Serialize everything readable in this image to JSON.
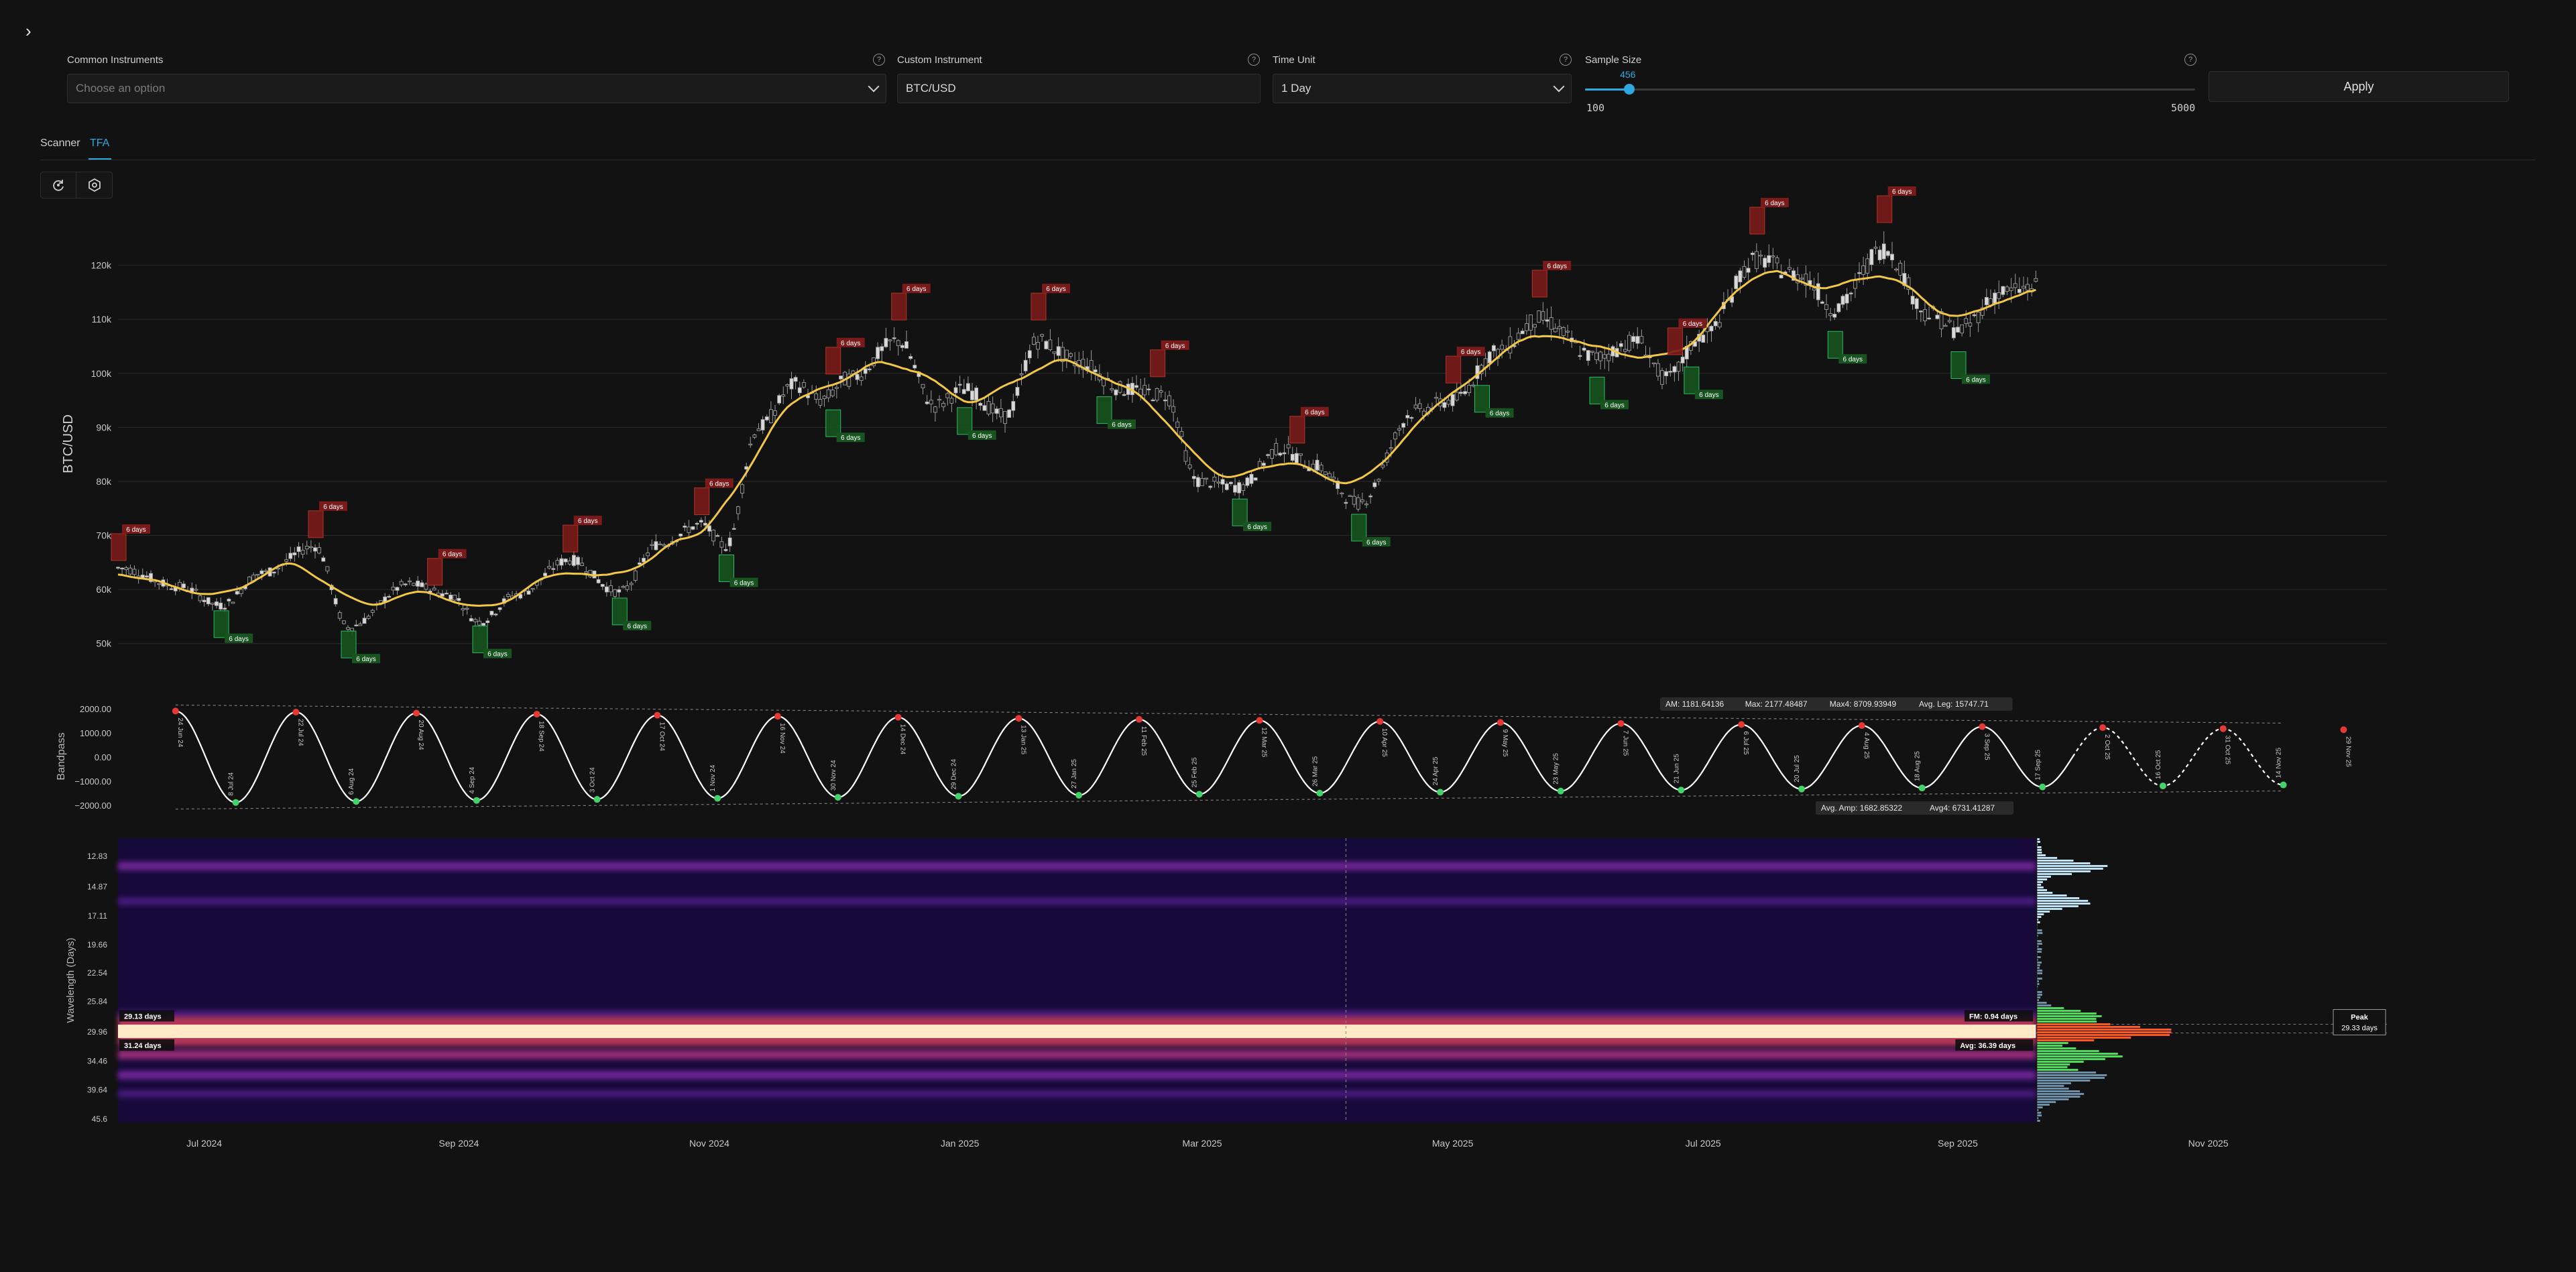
{
  "controls": {
    "common_instruments": {
      "label": "Common Instruments",
      "placeholder": "Choose an option"
    },
    "custom_instrument": {
      "label": "Custom Instrument",
      "value": "BTC/USD"
    },
    "time_unit": {
      "label": "Time Unit",
      "value": "1 Day"
    },
    "sample_size": {
      "label": "Sample Size",
      "value": 456,
      "min": 100,
      "max": 5000,
      "value_text": "456",
      "min_text": "100",
      "max_text": "5000"
    },
    "apply_label": "Apply",
    "help_glyph": "?"
  },
  "tabs": [
    {
      "label": "Scanner",
      "active": false
    },
    {
      "label": "TFA",
      "active": true
    }
  ],
  "toolbar": {
    "icons": [
      "refresh-icon",
      "settings-icon"
    ]
  },
  "colors": {
    "accent": "#2ea8e0",
    "background": "#121212",
    "price_line": "#f2c744",
    "peak_marker": "#e53935",
    "trough_marker": "#43d36b",
    "bandpass": "#ffffff"
  },
  "chart_data": [
    {
      "type": "candlestick",
      "ylabel": "BTC/USD",
      "y_ticks": [
        "50k",
        "60k",
        "70k",
        "80k",
        "90k",
        "100k",
        "110k",
        "120k"
      ],
      "ylim": [
        45000,
        130000
      ],
      "x_ticks": [
        "Jul 2024",
        "Sep 2024",
        "Nov 2024",
        "Jan 2025",
        "Mar 2025",
        "May 2025",
        "Jul 2025",
        "Sep 2025",
        "Nov 2025"
      ],
      "xlim": [
        "2024-06-10",
        "2025-11-20"
      ],
      "price_path": [
        [
          "2024-06-10",
          64000
        ],
        [
          "2024-06-25",
          60500
        ],
        [
          "2024-07-05",
          57000
        ],
        [
          "2024-07-15",
          63000
        ],
        [
          "2024-07-28",
          68000
        ],
        [
          "2024-08-05",
          53000
        ],
        [
          "2024-08-20",
          61000
        ],
        [
          "2024-08-30",
          59000
        ],
        [
          "2024-09-06",
          54000
        ],
        [
          "2024-09-15",
          59000
        ],
        [
          "2024-09-28",
          65500
        ],
        [
          "2024-10-10",
          59500
        ],
        [
          "2024-10-20",
          68500
        ],
        [
          "2024-10-30",
          72000
        ],
        [
          "2024-11-05",
          68000
        ],
        [
          "2024-11-13",
          90000
        ],
        [
          "2024-11-22",
          98000
        ],
        [
          "2024-11-28",
          95000
        ],
        [
          "2024-12-05",
          99000
        ],
        [
          "2024-12-17",
          106000
        ],
        [
          "2024-12-26",
          94000
        ],
        [
          "2025-01-02",
          97000
        ],
        [
          "2025-01-12",
          92000
        ],
        [
          "2025-01-20",
          106000
        ],
        [
          "2025-01-30",
          102000
        ],
        [
          "2025-02-10",
          97000
        ],
        [
          "2025-02-20",
          96000
        ],
        [
          "2025-02-28",
          80000
        ],
        [
          "2025-03-10",
          79000
        ],
        [
          "2025-03-20",
          86000
        ],
        [
          "2025-03-28",
          83000
        ],
        [
          "2025-04-08",
          76000
        ],
        [
          "2025-04-22",
          93000
        ],
        [
          "2025-05-01",
          95000
        ],
        [
          "2025-05-12",
          104000
        ],
        [
          "2025-05-22",
          110000
        ],
        [
          "2025-06-05",
          103000
        ],
        [
          "2025-06-15",
          106000
        ],
        [
          "2025-06-22",
          99000
        ],
        [
          "2025-07-01",
          107000
        ],
        [
          "2025-07-14",
          121000
        ],
        [
          "2025-07-25",
          118000
        ],
        [
          "2025-08-02",
          112000
        ],
        [
          "2025-08-14",
          123000
        ],
        [
          "2025-08-25",
          111000
        ],
        [
          "2025-09-01",
          108000
        ],
        [
          "2025-09-12",
          115000
        ],
        [
          "2025-09-20",
          116000
        ]
      ],
      "peaks": [
        {
          "date": "2024-06-10",
          "label": "6 days"
        },
        {
          "date": "2024-07-28",
          "label": "6 days"
        },
        {
          "date": "2024-08-26",
          "label": "6 days"
        },
        {
          "date": "2024-09-28",
          "label": "6 days"
        },
        {
          "date": "2024-10-30",
          "label": "6 days"
        },
        {
          "date": "2024-12-01",
          "label": "6 days"
        },
        {
          "date": "2024-12-17",
          "label": "6 days"
        },
        {
          "date": "2025-01-20",
          "label": "6 days"
        },
        {
          "date": "2025-02-18",
          "label": "6 days"
        },
        {
          "date": "2025-03-24",
          "label": "6 days"
        },
        {
          "date": "2025-05-01",
          "label": "6 days"
        },
        {
          "date": "2025-05-22",
          "label": "6 days"
        },
        {
          "date": "2025-06-24",
          "label": "6 days"
        },
        {
          "date": "2025-07-14",
          "label": "6 days"
        },
        {
          "date": "2025-08-14",
          "label": "6 days"
        }
      ],
      "troughs": [
        {
          "date": "2024-07-05",
          "label": "6 days"
        },
        {
          "date": "2024-08-05",
          "label": "6 days"
        },
        {
          "date": "2024-09-06",
          "label": "6 days"
        },
        {
          "date": "2024-10-10",
          "label": "6 days"
        },
        {
          "date": "2024-11-05",
          "label": "6 days"
        },
        {
          "date": "2024-12-01",
          "label": "6 days"
        },
        {
          "date": "2025-01-02",
          "label": "6 days"
        },
        {
          "date": "2025-02-05",
          "label": "6 days"
        },
        {
          "date": "2025-03-10",
          "label": "6 days"
        },
        {
          "date": "2025-04-08",
          "label": "6 days"
        },
        {
          "date": "2025-05-08",
          "label": "6 days"
        },
        {
          "date": "2025-06-05",
          "label": "6 days"
        },
        {
          "date": "2025-06-28",
          "label": "6 days"
        },
        {
          "date": "2025-08-02",
          "label": "6 days"
        },
        {
          "date": "2025-09-01",
          "label": "6 days"
        }
      ]
    },
    {
      "type": "line",
      "ylabel": "Bandpass",
      "y_ticks": [
        "2000.00",
        "1000.00",
        "0.00",
        "−1000.00",
        "−2000.00"
      ],
      "ylim": [
        -2300,
        2300
      ],
      "period_days": 29.33,
      "start": "2024-06-24",
      "forecast_start": "2025-09-29",
      "stats": {
        "am": "AM: 1181.64136",
        "max": "Max: 2177.48487",
        "max4": "Max4: 8709.93949",
        "avg_leg": "Avg. Leg: 15747.71",
        "avg_amp": "Avg. Amp: 1682.85322",
        "avg4": "Avg4: 6731.41287"
      },
      "peak_dates": [
        "24 Jun 24",
        "22 Jul 24",
        "20 Aug 24",
        "18 Sep 24",
        "17 Oct 24",
        "16 Nov 24",
        "14 Dec 24",
        "13 Jan 25",
        "11 Feb 25",
        "12 Mar 25",
        "10 Apr 25",
        "9 May 25",
        "7 Jun 25",
        "6 Jul 25",
        "4 Aug 25",
        "3 Sep 25",
        "2 Oct 25",
        "31 Oct 25",
        "29 Nov 25"
      ],
      "trough_dates": [
        "8 Jul 24",
        "6 Aug 24",
        "4 Sep 24",
        "3 Oct 24",
        "1 Nov 24",
        "30 Nov 24",
        "29 Dec 24",
        "27 Jan 25",
        "25 Feb 25",
        "26 Mar 25",
        "24 Apr 25",
        "23 May 25",
        "21 Jun 25",
        "20 Jul 25",
        "18 Aug 25",
        "17 Sep 25",
        "16 Oct 25",
        "14 Nov 25"
      ]
    },
    {
      "type": "heatmap",
      "ylabel": "Wavelength (Days)",
      "y_ticks": [
        "12.83",
        "14.87",
        "17.11",
        "19.66",
        "22.54",
        "25.84",
        "29.96",
        "34.46",
        "39.64",
        "45.6"
      ],
      "bands": [
        {
          "wavelength": 13.5,
          "intensity": 0.45
        },
        {
          "wavelength": 16.0,
          "intensity": 0.35
        },
        {
          "wavelength": 27.6,
          "intensity": 0.4
        },
        {
          "wavelength": 29.96,
          "intensity": 1.0
        },
        {
          "wavelength": 33.5,
          "intensity": 0.55
        },
        {
          "wavelength": 37.0,
          "intensity": 0.45
        },
        {
          "wavelength": 40.5,
          "intensity": 0.3
        }
      ],
      "labels": {
        "upper": "29.13 days",
        "lower": "31.24 days",
        "fm": "FM: 0.94 days",
        "avg": "Avg: 36.39 days",
        "peak_title": "Peak",
        "peak_value": "29.33 days"
      }
    }
  ]
}
